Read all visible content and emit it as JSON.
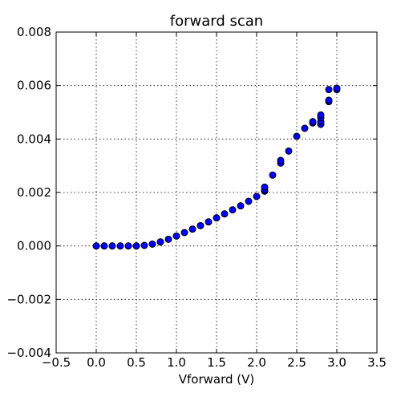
{
  "chart_data": {
    "type": "scatter",
    "title": "forward scan",
    "xlabel": "Vforward (V)",
    "ylabel": "",
    "xlim": [
      -0.5,
      3.5
    ],
    "ylim": [
      -0.004,
      0.008
    ],
    "xticks": [
      -0.5,
      0.0,
      0.5,
      1.0,
      1.5,
      2.0,
      2.5,
      3.0,
      3.5
    ],
    "xtick_labels": [
      "−0.5",
      "0.0",
      "0.5",
      "1.0",
      "1.5",
      "2.0",
      "2.5",
      "3.0",
      "3.5"
    ],
    "yticks": [
      -0.004,
      -0.002,
      0.0,
      0.002,
      0.004,
      0.006,
      0.008
    ],
    "ytick_labels": [
      "−0.004",
      "−0.002",
      "0.000",
      "0.002",
      "0.004",
      "0.006",
      "0.008"
    ],
    "grid": true,
    "marker_color": "#0000ff",
    "points": [
      [
        0.0,
        0.0
      ],
      [
        0.1,
        0.0
      ],
      [
        0.2,
        0.0
      ],
      [
        0.3,
        0.0
      ],
      [
        0.4,
        0.0
      ],
      [
        0.5,
        0.0
      ],
      [
        0.6,
        2e-05
      ],
      [
        0.7,
        7e-05
      ],
      [
        0.8,
        0.00015
      ],
      [
        0.9,
        0.00025
      ],
      [
        1.0,
        0.00037
      ],
      [
        1.1,
        0.0005
      ],
      [
        1.2,
        0.00063
      ],
      [
        1.3,
        0.00076
      ],
      [
        1.4,
        0.0009
      ],
      [
        1.5,
        0.00105
      ],
      [
        1.6,
        0.0012
      ],
      [
        1.7,
        0.00135
      ],
      [
        1.8,
        0.0015
      ],
      [
        1.9,
        0.00167
      ],
      [
        2.0,
        0.00185
      ],
      [
        2.1,
        0.00205
      ],
      [
        2.1,
        0.0021
      ],
      [
        2.1,
        0.0022
      ],
      [
        2.2,
        0.00265
      ],
      [
        2.3,
        0.0031
      ],
      [
        2.3,
        0.0032
      ],
      [
        2.4,
        0.00355
      ],
      [
        2.5,
        0.0041
      ],
      [
        2.6,
        0.0044
      ],
      [
        2.7,
        0.0046
      ],
      [
        2.7,
        0.00465
      ],
      [
        2.8,
        0.00455
      ],
      [
        2.8,
        0.00465
      ],
      [
        2.8,
        0.0048
      ],
      [
        2.8,
        0.0049
      ],
      [
        2.9,
        0.0054
      ],
      [
        2.9,
        0.00545
      ],
      [
        2.9,
        0.00585
      ],
      [
        3.0,
        0.00585
      ],
      [
        3.0,
        0.0059
      ]
    ]
  }
}
